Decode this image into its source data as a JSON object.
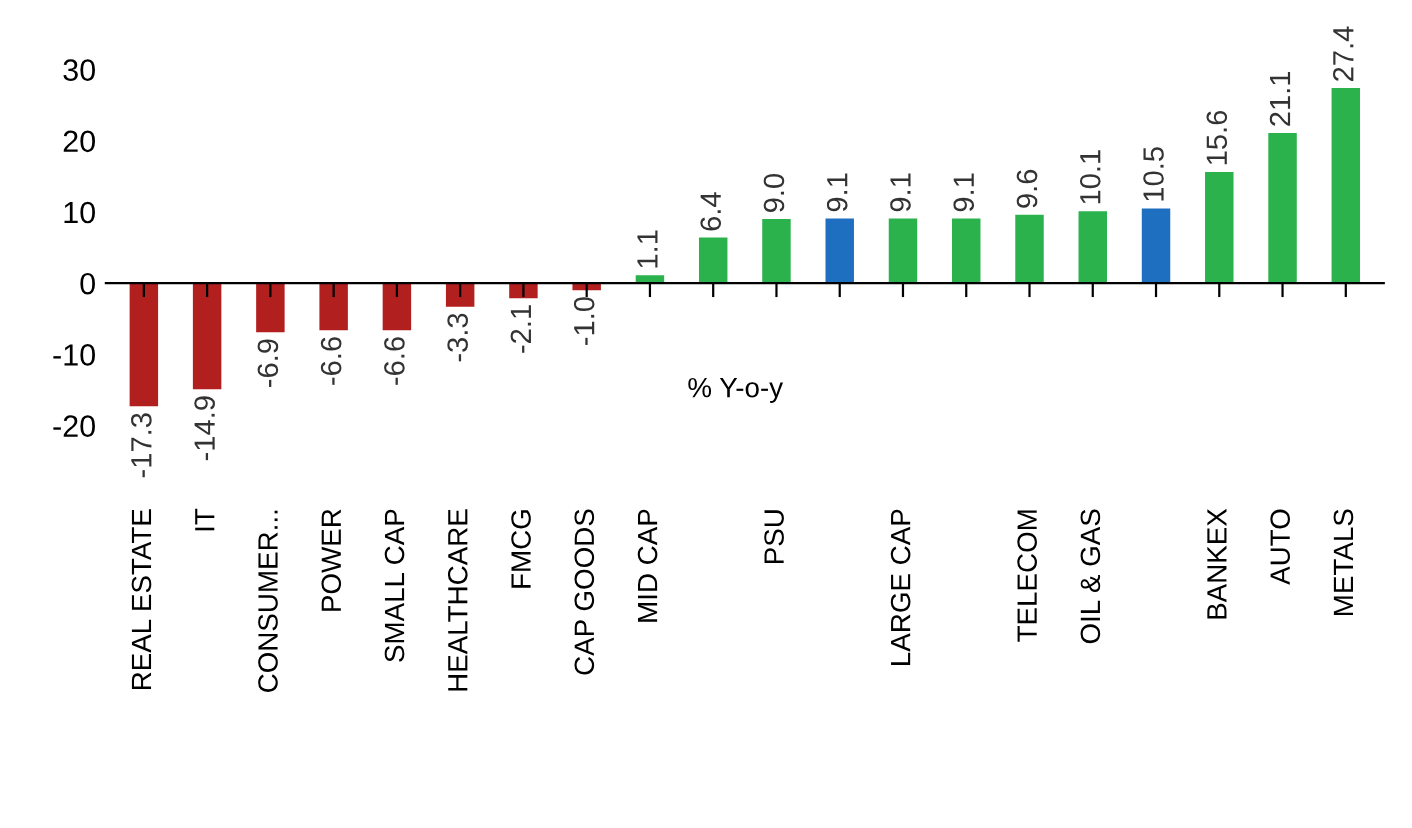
{
  "chart_data": {
    "type": "bar",
    "categories": [
      "REAL ESTATE",
      "IT",
      "CONSUMER...",
      "POWER",
      "SMALL CAP",
      "HEALTHCARE",
      "FMCG",
      "CAP GOODS",
      "MID CAP",
      null,
      "PSU",
      null,
      "LARGE CAP",
      null,
      "TELECOM",
      "OIL & GAS",
      null,
      "BANKEX",
      "AUTO",
      "METALS"
    ],
    "values": [
      -17.3,
      -14.9,
      -6.9,
      -6.6,
      -6.6,
      -3.3,
      -2.1,
      -1.0,
      1.1,
      6.4,
      9.0,
      9.1,
      9.1,
      9.1,
      9.6,
      10.1,
      10.5,
      15.6,
      21.1,
      27.4
    ],
    "value_labels": [
      "-17.3",
      "-14.9",
      "-6.9",
      "-6.6",
      "-6.6",
      "-3.3",
      "-2.1",
      "-1.0",
      "1.1",
      "6.4",
      "9.0",
      "9.1",
      "9.1",
      "9.1",
      "9.6",
      "10.1",
      "10.5",
      "15.6",
      "21.1",
      "27.4"
    ],
    "colors": [
      "#b21f1f",
      "#b21f1f",
      "#b21f1f",
      "#b21f1f",
      "#b21f1f",
      "#b21f1f",
      "#b21f1f",
      "#b21f1f",
      "#2bb24c",
      "#2bb24c",
      "#2bb24c",
      "#1f6fc0",
      "#2bb24c",
      "#2bb24c",
      "#2bb24c",
      "#2bb24c",
      "#1f6fc0",
      "#2bb24c",
      "#2bb24c",
      "#2bb24c"
    ],
    "ylim": [
      -20,
      30
    ],
    "yticks": [
      -20,
      -10,
      0,
      10,
      20,
      30
    ],
    "annotations": [
      "% Y-o-y"
    ],
    "legend": false
  }
}
